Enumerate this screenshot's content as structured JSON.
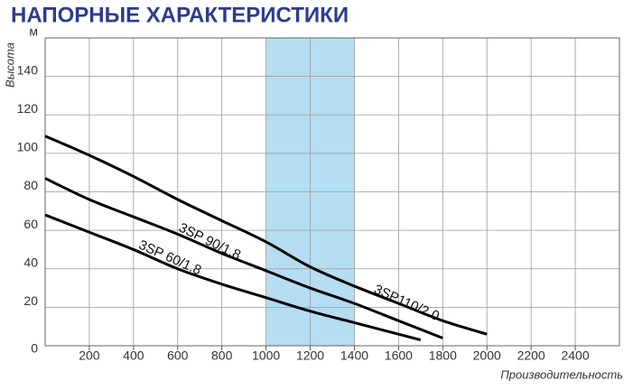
{
  "chart_data": {
    "type": "line",
    "title": "НАПОРНЫЕ ХАРАКТЕРИСТИКИ",
    "x_label": "Производительность",
    "y_label": "Высота",
    "xlim": [
      0,
      2600
    ],
    "xticks": [
      200,
      400,
      600,
      800,
      1000,
      1200,
      1400,
      1600,
      1800,
      2000,
      2200,
      2400
    ],
    "ylim": [
      0,
      160
    ],
    "yticks": [
      0,
      20,
      40,
      60,
      80,
      100,
      120,
      140,
      {
        "value": 160,
        "label": "м"
      }
    ],
    "grid": true,
    "highlight": {
      "xlim": [
        1000,
        1400
      ],
      "color": "#b5def2"
    },
    "series": [
      {
        "name": "3SP110/2.0",
        "color": "#000000",
        "x": [
          0,
          200,
          400,
          600,
          800,
          1000,
          1200,
          1400,
          1600,
          1800,
          2000
        ],
        "values": [
          109,
          99,
          88,
          76,
          65,
          54,
          41,
          31,
          22,
          13,
          6
        ]
      },
      {
        "name": "3SP 90/1.8",
        "color": "#000000",
        "x": [
          0,
          200,
          400,
          600,
          800,
          1000,
          1200,
          1400,
          1600,
          1800
        ],
        "values": [
          87,
          76,
          67,
          58,
          48,
          39,
          30,
          22,
          13,
          4
        ]
      },
      {
        "name": "3SP 60/1.8",
        "color": "#000000",
        "x": [
          0,
          200,
          400,
          600,
          800,
          1000,
          1200,
          1400,
          1600,
          1700
        ],
        "values": [
          68,
          59,
          50,
          40,
          32,
          25,
          18,
          12,
          6,
          3
        ]
      }
    ]
  }
}
